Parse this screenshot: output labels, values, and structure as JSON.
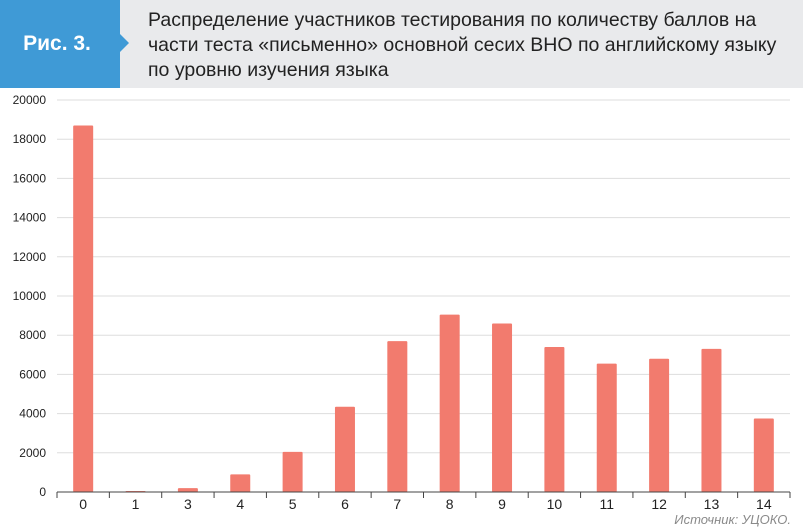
{
  "figure": {
    "label": "Рис. 3.",
    "title": "Распределение участников тестирования по количеству баллов на части теста «письменно» основной сесих ВНО по английскому языку по уровню изучения языка",
    "source": "Источник: УЦОКО."
  },
  "colors": {
    "bar": "#f27b6e",
    "badge": "#3f9ad6",
    "header_bg": "#e9eaec",
    "grid": "#dddddd"
  },
  "chart_data": {
    "type": "bar",
    "categories": [
      "0",
      "1",
      "3",
      "4",
      "5",
      "6",
      "7",
      "8",
      "9",
      "10",
      "11",
      "12",
      "13",
      "14"
    ],
    "values": [
      18700,
      50,
      200,
      900,
      2050,
      4350,
      7700,
      9050,
      8600,
      7400,
      6550,
      6800,
      7300,
      3750
    ],
    "yticks": [
      0,
      2000,
      4000,
      6000,
      8000,
      10000,
      12000,
      14000,
      16000,
      18000,
      20000
    ],
    "ylim": [
      0,
      20000
    ],
    "title": "",
    "xlabel": "",
    "ylabel": "",
    "grid": true
  }
}
